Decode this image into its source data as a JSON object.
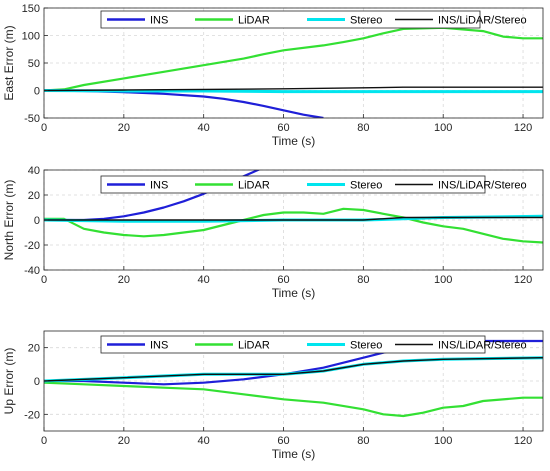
{
  "chart_data": [
    {
      "type": "line",
      "title": "",
      "xlabel": "Time (s)",
      "ylabel": "East Error (m)",
      "xlim": [
        0,
        125
      ],
      "ylim": [
        -50,
        150
      ],
      "xticks": [
        0,
        20,
        40,
        60,
        80,
        100,
        120
      ],
      "yticks": [
        -50,
        0,
        50,
        100,
        150
      ],
      "grid": true,
      "legend": "top, horizontal",
      "series": [
        {
          "name": "INS",
          "color": "#1f1fd8",
          "x": [
            0,
            10,
            20,
            30,
            40,
            45,
            50,
            55,
            60,
            65,
            70
          ],
          "y": [
            0,
            -1,
            -3,
            -6,
            -11,
            -15,
            -21,
            -28,
            -36,
            -44,
            -50
          ]
        },
        {
          "name": "LiDAR",
          "color": "#33e033",
          "x": [
            0,
            5,
            10,
            20,
            30,
            40,
            50,
            55,
            60,
            70,
            75,
            80,
            85,
            90,
            100,
            110,
            115,
            120,
            125
          ],
          "y": [
            0,
            2,
            10,
            22,
            34,
            46,
            58,
            66,
            73,
            82,
            88,
            95,
            104,
            112,
            114,
            108,
            98,
            95,
            95
          ]
        },
        {
          "name": "Stereo",
          "color": "#00e5ee",
          "x": [
            0,
            20,
            40,
            60,
            80,
            100,
            125
          ],
          "y": [
            0,
            -1,
            -1,
            -2,
            -2,
            -2,
            -2
          ]
        },
        {
          "name": "INS/LiDAR/Stereo",
          "color": "#111111",
          "x": [
            0,
            20,
            40,
            60,
            80,
            90,
            100,
            125
          ],
          "y": [
            0,
            1,
            2,
            3,
            5,
            6,
            6,
            6
          ]
        }
      ]
    },
    {
      "type": "line",
      "title": "",
      "xlabel": "Time (s)",
      "ylabel": "North Error (m)",
      "xlim": [
        0,
        125
      ],
      "ylim": [
        -40,
        40
      ],
      "xticks": [
        0,
        20,
        40,
        60,
        80,
        100,
        120
      ],
      "yticks": [
        -40,
        -20,
        0,
        20,
        40
      ],
      "grid": true,
      "legend": "top, horizontal",
      "series": [
        {
          "name": "INS",
          "color": "#1f1fd8",
          "x": [
            0,
            10,
            15,
            20,
            25,
            30,
            35,
            40,
            45,
            50,
            55
          ],
          "y": [
            0,
            0,
            1,
            3,
            6,
            10,
            15,
            21,
            28,
            35,
            42
          ]
        },
        {
          "name": "LiDAR",
          "color": "#33e033",
          "x": [
            0,
            5,
            10,
            15,
            20,
            25,
            30,
            35,
            40,
            45,
            50,
            55,
            60,
            65,
            70,
            75,
            80,
            85,
            90,
            95,
            100,
            105,
            110,
            115,
            120,
            125
          ],
          "y": [
            1,
            1,
            -7,
            -10,
            -12,
            -13,
            -12,
            -10,
            -8,
            -4,
            0,
            4,
            6,
            6,
            5,
            9,
            8,
            5,
            2,
            -2,
            -5,
            -7,
            -11,
            -15,
            -17,
            -18
          ]
        },
        {
          "name": "Stereo",
          "color": "#00e5ee",
          "x": [
            0,
            20,
            40,
            60,
            80,
            90,
            100,
            125
          ],
          "y": [
            0,
            -1,
            -1,
            0,
            0,
            1,
            2,
            3
          ]
        },
        {
          "name": "INS/LiDAR/Stereo",
          "color": "#111111",
          "x": [
            0,
            20,
            40,
            60,
            80,
            90,
            100,
            125
          ],
          "y": [
            0,
            0,
            0,
            0,
            0,
            2,
            2,
            2
          ]
        }
      ]
    },
    {
      "type": "line",
      "title": "",
      "xlabel": "Time (s)",
      "ylabel": "Up Error (m)",
      "xlim": [
        0,
        125
      ],
      "ylim": [
        -30,
        30
      ],
      "xticks": [
        0,
        20,
        40,
        60,
        80,
        100,
        120
      ],
      "yticks": [
        -20,
        0,
        20
      ],
      "grid": true,
      "legend": "top, horizontal",
      "series": [
        {
          "name": "INS",
          "color": "#1f1fd8",
          "x": [
            0,
            10,
            20,
            30,
            40,
            50,
            60,
            70,
            80,
            90,
            100,
            110,
            125
          ],
          "y": [
            0,
            0,
            -1,
            -2,
            -1,
            1,
            4,
            8,
            14,
            20,
            24,
            24,
            24
          ]
        },
        {
          "name": "LiDAR",
          "color": "#33e033",
          "x": [
            0,
            10,
            20,
            30,
            40,
            50,
            60,
            70,
            80,
            85,
            90,
            95,
            100,
            105,
            110,
            120,
            125
          ],
          "y": [
            -1,
            -2,
            -3,
            -4,
            -5,
            -8,
            -11,
            -13,
            -17,
            -20,
            -21,
            -19,
            -16,
            -15,
            -12,
            -10,
            -10
          ]
        },
        {
          "name": "Stereo",
          "color": "#00e5ee",
          "x": [
            0,
            20,
            40,
            50,
            60,
            70,
            80,
            90,
            100,
            125
          ],
          "y": [
            0,
            2,
            4,
            4,
            4,
            6,
            10,
            12,
            13,
            14
          ]
        },
        {
          "name": "INS/LiDAR/Stereo",
          "color": "#111111",
          "x": [
            0,
            20,
            40,
            50,
            60,
            70,
            80,
            90,
            100,
            125
          ],
          "y": [
            0,
            2,
            4,
            4,
            4,
            6,
            10,
            12,
            13,
            14
          ]
        }
      ]
    }
  ]
}
